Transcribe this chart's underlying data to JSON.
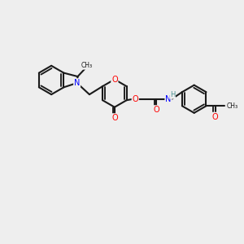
{
  "bg_color": "#eeeeee",
  "bond_color": "#1a1a1a",
  "N_color": "#0000ff",
  "O_color": "#ff0000",
  "H_color": "#4a9090",
  "line_width": 1.5,
  "dbo": 0.07,
  "figsize": [
    3.0,
    3.0
  ],
  "dpi": 100,
  "xlim": [
    0,
    10
  ],
  "ylim": [
    0,
    10
  ]
}
